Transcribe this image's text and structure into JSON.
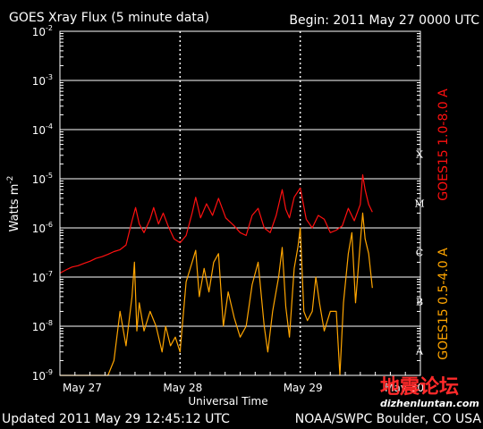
{
  "header": {
    "title": "GOES Xray Flux (5 minute data)",
    "begin": "Begin:  2011 May 27 0000 UTC"
  },
  "footer": {
    "updated": "Updated 2011 May 29 12:45:12 UTC",
    "source": "NOAA/SWPC Boulder, CO USA"
  },
  "watermark": {
    "cn": "地震论坛",
    "url": "dizhenluntan.com"
  },
  "colors": {
    "background": "#000000",
    "long_channel": "#ff1010",
    "short_channel": "#ffa500",
    "grid": "#ffffff",
    "right_label_red": "#ff1010",
    "right_label_orange": "#ffa500"
  },
  "chart_data": {
    "type": "line",
    "title": "GOES Xray Flux (5 minute data)",
    "xlabel": "Universal Time",
    "ylabel": "Watts m",
    "ylabel_sup": "-2",
    "yscale": "log",
    "ylim": [
      1e-09,
      0.01
    ],
    "xlim": [
      0,
      3
    ],
    "x_unit": "days since 2011 May 27 0000 UTC",
    "y_ticks": [
      {
        "exp": "-2",
        "value": 0.01
      },
      {
        "exp": "-3",
        "value": 0.001
      },
      {
        "exp": "-4",
        "value": 0.0001
      },
      {
        "exp": "-5",
        "value": 1e-05
      },
      {
        "exp": "-6",
        "value": 1e-06
      },
      {
        "exp": "-7",
        "value": 1e-07
      },
      {
        "exp": "-8",
        "value": 1e-08
      },
      {
        "exp": "-9",
        "value": 1e-09
      }
    ],
    "x_ticks": [
      {
        "label": "May 27",
        "x": 0
      },
      {
        "label": "May 28",
        "x": 1
      },
      {
        "label": "May 29",
        "x": 2
      },
      {
        "label": "May 30",
        "x": 3
      }
    ],
    "flare_classes": [
      {
        "label": "X",
        "value": 0.0001
      },
      {
        "label": "M",
        "value": 1e-05
      },
      {
        "label": "C",
        "value": 1e-06
      },
      {
        "label": "B",
        "value": 1e-07
      },
      {
        "label": "A",
        "value": 1e-08
      }
    ],
    "grid": true,
    "series": [
      {
        "name": "GOES15 1.0-8.0 A",
        "color": "#ff1010",
        "points": [
          [
            0.0,
            1.2e-07
          ],
          [
            0.05,
            1.4e-07
          ],
          [
            0.1,
            1.6e-07
          ],
          [
            0.15,
            1.7e-07
          ],
          [
            0.2,
            1.9e-07
          ],
          [
            0.25,
            2.1e-07
          ],
          [
            0.3,
            2.4e-07
          ],
          [
            0.35,
            2.6e-07
          ],
          [
            0.4,
            2.9e-07
          ],
          [
            0.45,
            3.3e-07
          ],
          [
            0.5,
            3.6e-07
          ],
          [
            0.55,
            4.5e-07
          ],
          [
            0.6,
            1.4e-06
          ],
          [
            0.63,
            2.6e-06
          ],
          [
            0.66,
            1.2e-06
          ],
          [
            0.7,
            8e-07
          ],
          [
            0.75,
            1.5e-06
          ],
          [
            0.78,
            2.6e-06
          ],
          [
            0.82,
            1.2e-06
          ],
          [
            0.86,
            2e-06
          ],
          [
            0.9,
            1.1e-06
          ],
          [
            0.95,
            6e-07
          ],
          [
            1.0,
            5e-07
          ],
          [
            1.05,
            7e-07
          ],
          [
            1.1,
            2e-06
          ],
          [
            1.13,
            4.2e-06
          ],
          [
            1.17,
            1.6e-06
          ],
          [
            1.22,
            3.1e-06
          ],
          [
            1.27,
            1.8e-06
          ],
          [
            1.32,
            4e-06
          ],
          [
            1.38,
            1.6e-06
          ],
          [
            1.45,
            1.1e-06
          ],
          [
            1.5,
            8e-07
          ],
          [
            1.55,
            7e-07
          ],
          [
            1.6,
            1.8e-06
          ],
          [
            1.65,
            2.5e-06
          ],
          [
            1.7,
            1e-06
          ],
          [
            1.75,
            8e-07
          ],
          [
            1.8,
            1.8e-06
          ],
          [
            1.85,
            6e-06
          ],
          [
            1.88,
            2.4e-06
          ],
          [
            1.91,
            1.6e-06
          ],
          [
            1.95,
            4.2e-06
          ],
          [
            2.0,
            6.5e-06
          ],
          [
            2.05,
            1.5e-06
          ],
          [
            2.1,
            1e-06
          ],
          [
            2.15,
            1.8e-06
          ],
          [
            2.2,
            1.5e-06
          ],
          [
            2.25,
            8e-07
          ],
          [
            2.3,
            9e-07
          ],
          [
            2.35,
            1.1e-06
          ],
          [
            2.4,
            2.5e-06
          ],
          [
            2.45,
            1.4e-06
          ],
          [
            2.5,
            3e-06
          ],
          [
            2.52,
            1.2e-05
          ],
          [
            2.54,
            6e-06
          ],
          [
            2.57,
            3e-06
          ],
          [
            2.6,
            2.1e-06
          ]
        ]
      },
      {
        "name": "GOES15 0.5-4.0 A",
        "color": "#ffa500",
        "points": [
          [
            0.0,
            1e-09
          ],
          [
            0.3,
            1e-09
          ],
          [
            0.4,
            1e-09
          ],
          [
            0.45,
            2e-09
          ],
          [
            0.5,
            2e-08
          ],
          [
            0.55,
            4e-09
          ],
          [
            0.6,
            4e-08
          ],
          [
            0.62,
            2e-07
          ],
          [
            0.64,
            8e-09
          ],
          [
            0.66,
            3e-08
          ],
          [
            0.7,
            8e-09
          ],
          [
            0.75,
            2e-08
          ],
          [
            0.8,
            1e-08
          ],
          [
            0.85,
            3e-09
          ],
          [
            0.88,
            1e-08
          ],
          [
            0.92,
            4e-09
          ],
          [
            0.96,
            6e-09
          ],
          [
            1.0,
            3e-09
          ],
          [
            1.05,
            8e-08
          ],
          [
            1.1,
            2e-07
          ],
          [
            1.13,
            3.5e-07
          ],
          [
            1.16,
            4e-08
          ],
          [
            1.2,
            1.5e-07
          ],
          [
            1.24,
            5e-08
          ],
          [
            1.28,
            2e-07
          ],
          [
            1.32,
            3e-07
          ],
          [
            1.36,
            1e-08
          ],
          [
            1.4,
            5e-08
          ],
          [
            1.45,
            1.5e-08
          ],
          [
            1.5,
            6e-09
          ],
          [
            1.55,
            1e-08
          ],
          [
            1.6,
            7e-08
          ],
          [
            1.65,
            2e-07
          ],
          [
            1.7,
            1e-08
          ],
          [
            1.73,
            3e-09
          ],
          [
            1.77,
            2e-08
          ],
          [
            1.82,
            1e-07
          ],
          [
            1.85,
            4e-07
          ],
          [
            1.88,
            2.5e-08
          ],
          [
            1.91,
            6e-09
          ],
          [
            1.95,
            1.5e-07
          ],
          [
            1.98,
            4e-07
          ],
          [
            2.0,
            1e-06
          ],
          [
            2.03,
            2e-08
          ],
          [
            2.06,
            1.3e-08
          ],
          [
            2.1,
            2e-08
          ],
          [
            2.13,
            1e-07
          ],
          [
            2.16,
            3e-08
          ],
          [
            2.2,
            8e-09
          ],
          [
            2.25,
            2e-08
          ],
          [
            2.3,
            2e-08
          ],
          [
            2.33,
            1e-09
          ],
          [
            2.36,
            3e-08
          ],
          [
            2.4,
            3e-07
          ],
          [
            2.43,
            8e-07
          ],
          [
            2.46,
            3e-08
          ],
          [
            2.5,
            5e-07
          ],
          [
            2.52,
            2e-06
          ],
          [
            2.54,
            6e-07
          ],
          [
            2.57,
            3e-07
          ],
          [
            2.6,
            6e-08
          ]
        ]
      }
    ],
    "right_labels": [
      {
        "text": "GOES15 1.0-8.0 A",
        "color": "#ff1010"
      },
      {
        "text": "GOES15 0.5-4.0 A",
        "color": "#ffa500"
      }
    ]
  }
}
